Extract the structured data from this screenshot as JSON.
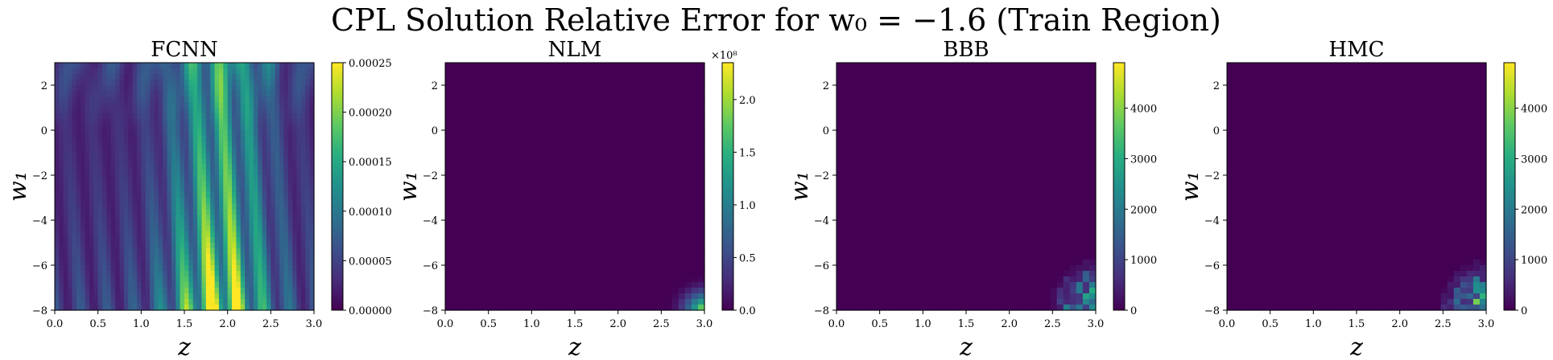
{
  "title": "CPL Solution Relative Error for w₀ = −1.6 (Train Region)",
  "chart_data": [
    {
      "type": "heatmap",
      "title": "FCNN",
      "xlabel": "z",
      "ylabel": "w₁",
      "xlim": [
        0.0,
        3.0
      ],
      "ylim": [
        -8,
        3
      ],
      "x_ticks": [
        "0.0",
        "0.5",
        "1.0",
        "1.5",
        "2.0",
        "2.5",
        "3.0"
      ],
      "y_ticks": [
        "2",
        "0",
        "−2",
        "−4",
        "−6",
        "−8"
      ],
      "colorbar": {
        "range": [
          0,
          0.00025
        ],
        "ticks": [
          "0.00000",
          "0.00005",
          "0.00010",
          "0.00015",
          "0.00020",
          "0.00025"
        ],
        "multiplier": ""
      },
      "pattern": "fcnn",
      "peak_value": 0.00025
    },
    {
      "type": "heatmap",
      "title": "NLM",
      "xlabel": "z",
      "ylabel": "w₁",
      "xlim": [
        0.0,
        3.0
      ],
      "ylim": [
        -8,
        3
      ],
      "x_ticks": [
        "0.0",
        "0.5",
        "1.0",
        "1.5",
        "2.0",
        "2.5",
        "3.0"
      ],
      "y_ticks": [
        "2",
        "0",
        "−2",
        "−4",
        "−6",
        "−8"
      ],
      "colorbar": {
        "range": [
          0,
          2.35
        ],
        "ticks": [
          "0.0",
          "0.5",
          "1.0",
          "1.5",
          "2.0"
        ],
        "multiplier": "×10⁸"
      },
      "pattern": "nlm",
      "peak_value": 235000000
    },
    {
      "type": "heatmap",
      "title": "BBB",
      "xlabel": "z",
      "ylabel": "w₁",
      "xlim": [
        0.0,
        3.0
      ],
      "ylim": [
        -8,
        3
      ],
      "x_ticks": [
        "0.0",
        "0.5",
        "1.0",
        "1.5",
        "2.0",
        "2.5",
        "3.0"
      ],
      "y_ticks": [
        "2",
        "0",
        "−2",
        "−4",
        "−6",
        "−8"
      ],
      "colorbar": {
        "range": [
          0,
          4900
        ],
        "ticks": [
          "0",
          "1000",
          "2000",
          "3000",
          "4000"
        ],
        "multiplier": ""
      },
      "pattern": "bbb",
      "peak_value": 4900
    },
    {
      "type": "heatmap",
      "title": "HMC",
      "xlabel": "z",
      "ylabel": "w₁",
      "xlim": [
        0.0,
        3.0
      ],
      "ylim": [
        -8,
        3
      ],
      "x_ticks": [
        "0.0",
        "0.5",
        "1.0",
        "1.5",
        "2.0",
        "2.5",
        "3.0"
      ],
      "y_ticks": [
        "2",
        "0",
        "−2",
        "−4",
        "−6",
        "−8"
      ],
      "colorbar": {
        "range": [
          0,
          4900
        ],
        "ticks": [
          "0",
          "1000",
          "2000",
          "3000",
          "4000"
        ],
        "multiplier": ""
      },
      "pattern": "hmc",
      "peak_value": 4900
    }
  ]
}
